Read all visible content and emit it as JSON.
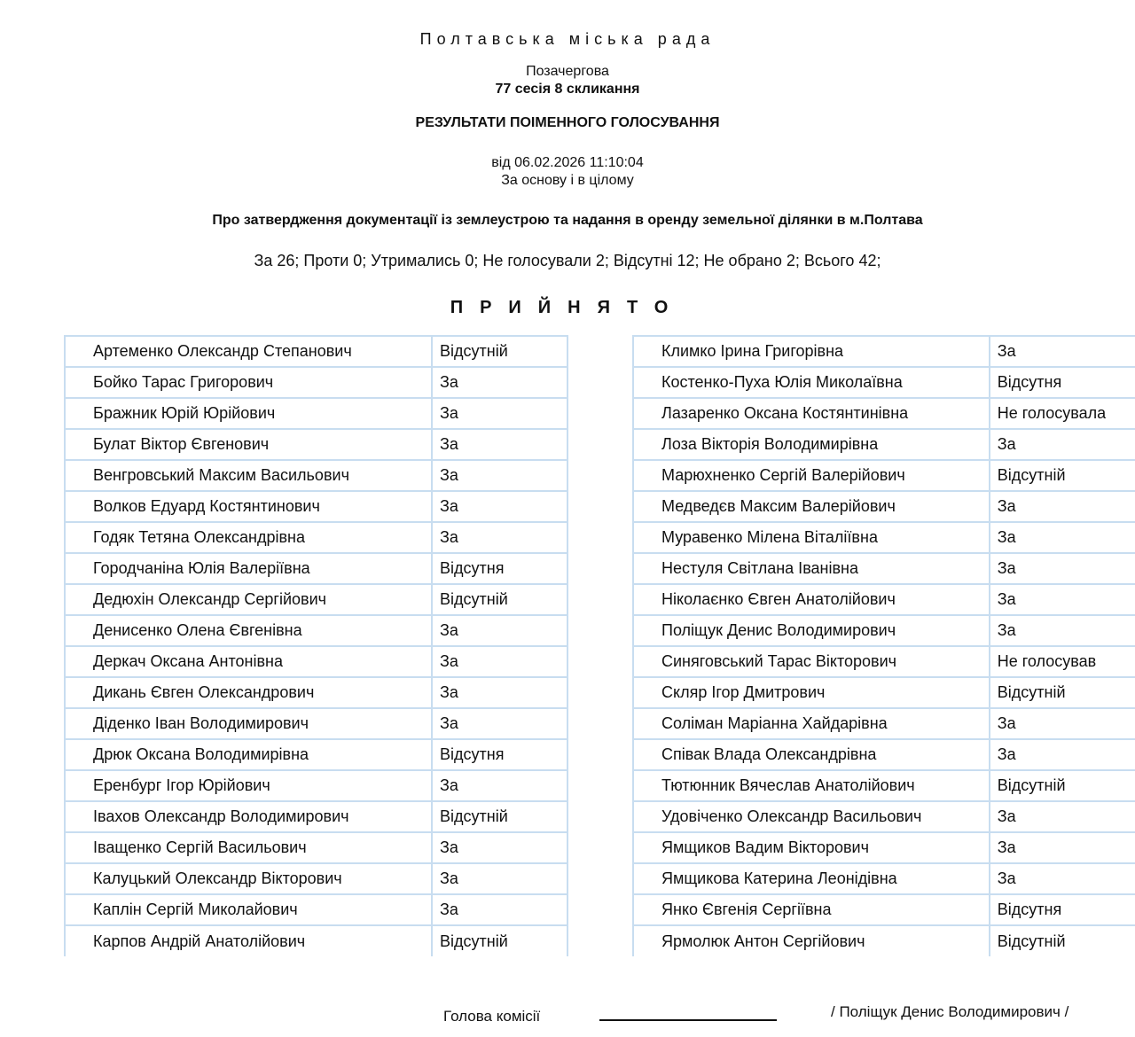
{
  "header": {
    "council": "Полтавська міська рада",
    "session_type": "Позачергова",
    "session": "77 сесія 8 скликання",
    "title": "РЕЗУЛЬТАТИ ПОІМЕННОГО ГОЛОСУВАННЯ",
    "date": "від 06.02.2026 11:10:04",
    "mode": "За основу і в цілому",
    "subject": "Про затвердження документації із землеустрою та надання в оренду земельної ділянки в м.Полтава",
    "summary": "За 26; Проти 0; Утримались 0; Не голосували 2; Відсутні 12; Не обрано 2; Всього 42;",
    "result": "ПРИЙНЯТО"
  },
  "left_table": [
    {
      "name": "Артеменко Олександр Степанович",
      "vote": "Відсутній"
    },
    {
      "name": "Бойко Тарас Григорович",
      "vote": "За"
    },
    {
      "name": "Бражник Юрій Юрійович",
      "vote": "За"
    },
    {
      "name": "Булат Віктор Євгенович",
      "vote": "За"
    },
    {
      "name": "Венгровський Максим Васильович",
      "vote": "За"
    },
    {
      "name": "Волков Едуард Костянтинович",
      "vote": "За"
    },
    {
      "name": "Годяк Тетяна Олександрівна",
      "vote": "За"
    },
    {
      "name": "Городчаніна Юлія Валеріївна",
      "vote": "Відсутня"
    },
    {
      "name": "Дедюхін Олександр Сергійович",
      "vote": "Відсутній"
    },
    {
      "name": "Денисенко Олена Євгенівна",
      "vote": "За"
    },
    {
      "name": "Деркач Оксана Антонівна",
      "vote": "За"
    },
    {
      "name": "Дикань Євген Олександрович",
      "vote": "За"
    },
    {
      "name": "Діденко Іван Володимирович",
      "vote": "За"
    },
    {
      "name": "Дрюк Оксана Володимирівна",
      "vote": "Відсутня"
    },
    {
      "name": "Еренбург Ігор Юрійович",
      "vote": "За"
    },
    {
      "name": "Івахов Олександр Володимирович",
      "vote": "Відсутній"
    },
    {
      "name": "Іващенко Сергій Васильович",
      "vote": "За"
    },
    {
      "name": "Калуцький Олександр Вікторович",
      "vote": "За"
    },
    {
      "name": "Каплін Сергій Миколайович",
      "vote": "За"
    },
    {
      "name": "Карпов Андрій Анатолійович",
      "vote": "Відсутній"
    }
  ],
  "right_table": [
    {
      "name": "Климко Ірина Григорівна",
      "vote": "За"
    },
    {
      "name": "Костенко-Пуха Юлія Миколаївна",
      "vote": "Відсутня"
    },
    {
      "name": "Лазаренко Оксана Костянтинівна",
      "vote": "Не голосувала"
    },
    {
      "name": "Лоза Вікторія Володимирівна",
      "vote": "За"
    },
    {
      "name": "Марюхненко Сергій Валерійович",
      "vote": "Відсутній"
    },
    {
      "name": "Медведєв Максим Валерійович",
      "vote": "За"
    },
    {
      "name": "Муравенко Мілена Віталіївна",
      "vote": "За"
    },
    {
      "name": "Нестуля Світлана Іванівна",
      "vote": "За"
    },
    {
      "name": "Ніколаєнко Євген Анатолійович",
      "vote": "За"
    },
    {
      "name": "Поліщук Денис Володимирович",
      "vote": "За"
    },
    {
      "name": "Синяговський Тарас Вікторович",
      "vote": "Не голосував"
    },
    {
      "name": "Скляр Ігор Дмитрович",
      "vote": "Відсутній"
    },
    {
      "name": "Соліман Маріанна Хайдарівна",
      "vote": "За"
    },
    {
      "name": "Співак Влада Олександрівна",
      "vote": "За"
    },
    {
      "name": "Тютюнник Вячеслав Анатолійович",
      "vote": "Відсутній"
    },
    {
      "name": "Удовіченко Олександр Васильович",
      "vote": "За"
    },
    {
      "name": "Ямщиков Вадим Вікторович",
      "vote": "За"
    },
    {
      "name": "Ямщикова Катерина Леонідівна",
      "vote": "За"
    },
    {
      "name": "Янко Євгенія Сергіївна",
      "vote": "Відсутня"
    },
    {
      "name": "Ярмолюк Антон Сергійович",
      "vote": "Відсутній"
    }
  ],
  "footer": {
    "chair_label": "Голова комісії",
    "chair_name": "/ Поліщук Денис Володимирович /"
  }
}
